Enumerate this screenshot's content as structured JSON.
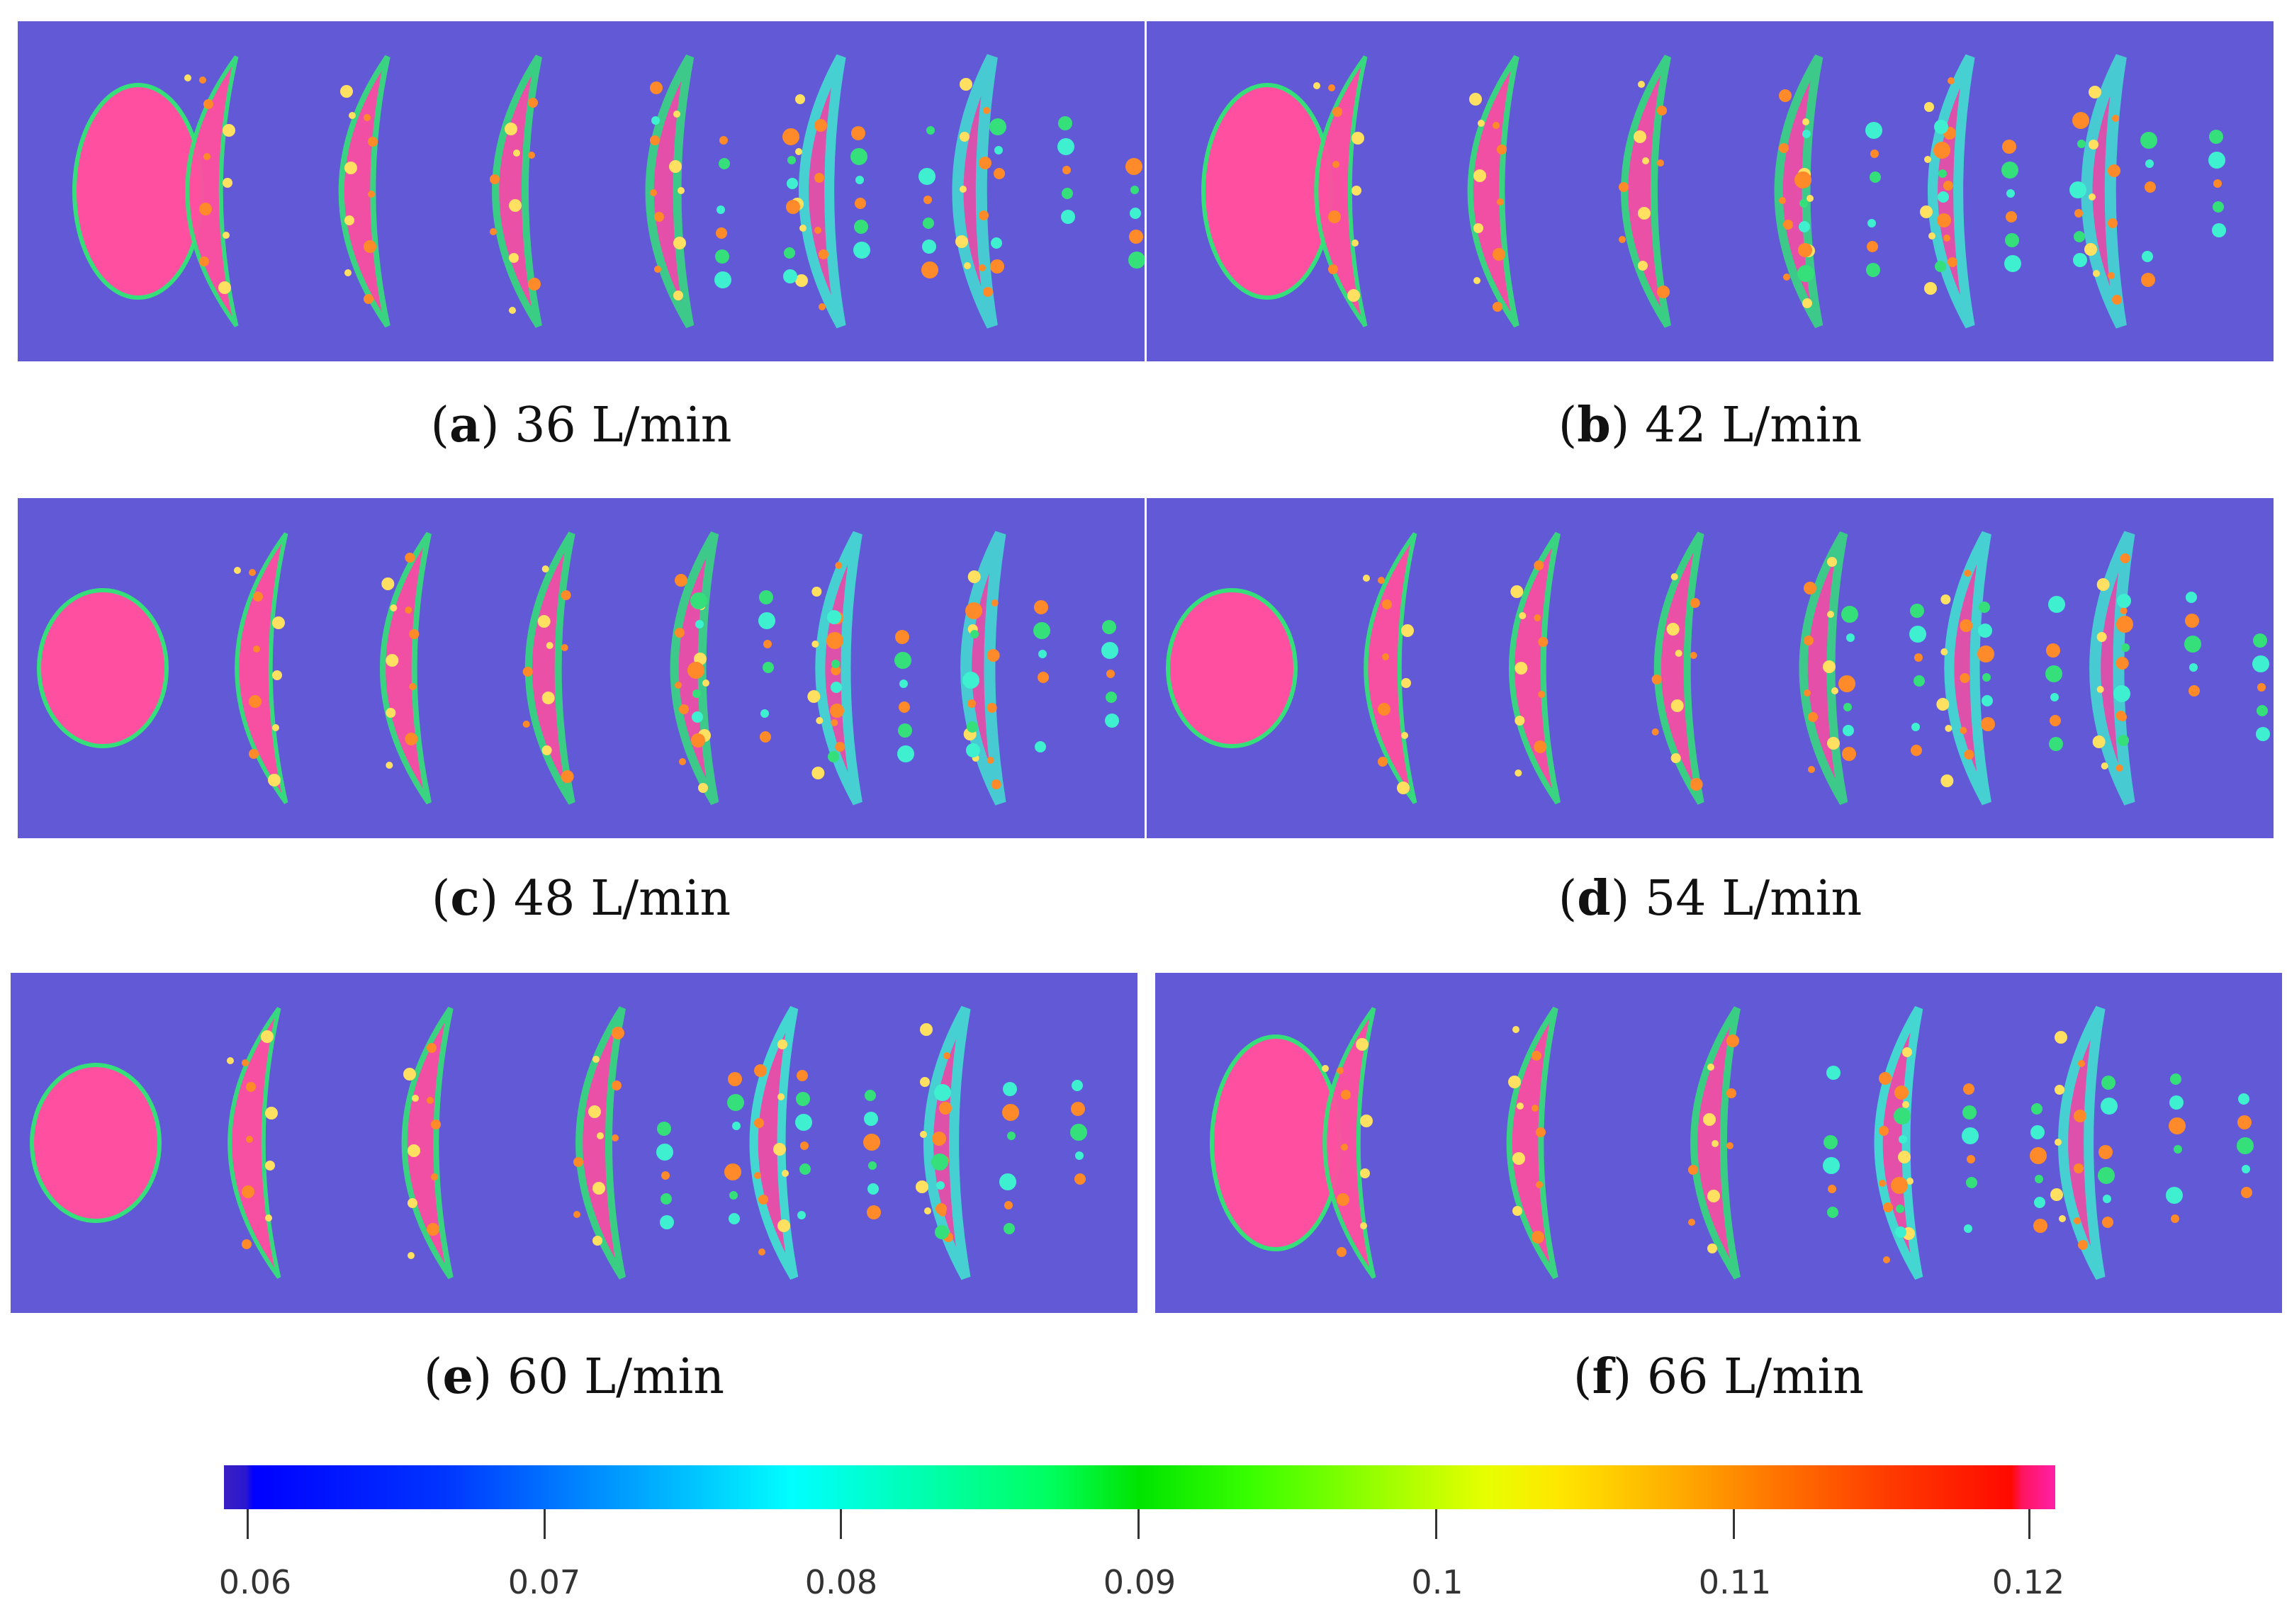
{
  "colors": {
    "background": "#6259d6",
    "level_high": "#ff4fa0",
    "level_orange": "#ff8a2a",
    "level_green": "#35e07a",
    "level_cyan": "#3ff0d0",
    "level_yellow": "#ffe060"
  },
  "panels": [
    {
      "letter": "a",
      "label": "36 L/min"
    },
    {
      "letter": "b",
      "label": "42 L/min"
    },
    {
      "letter": "c",
      "label": "48 L/min"
    },
    {
      "letter": "d",
      "label": "54 L/min"
    },
    {
      "letter": "e",
      "label": "60 L/min"
    },
    {
      "letter": "f",
      "label": "66 L/min"
    }
  ],
  "colorbar": {
    "ticks": [
      "0.06",
      "0.07",
      "0.08",
      "0.09",
      "0.1",
      "0.11",
      "0.12"
    ]
  }
}
